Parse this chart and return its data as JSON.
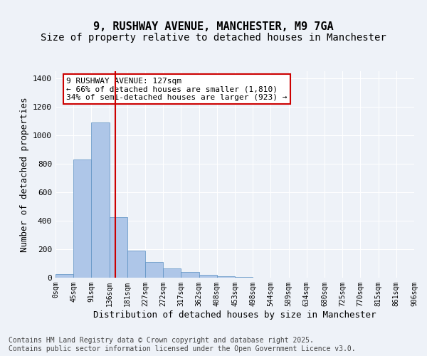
{
  "title1": "9, RUSHWAY AVENUE, MANCHESTER, M9 7GA",
  "title2": "Size of property relative to detached houses in Manchester",
  "xlabel": "Distribution of detached houses by size in Manchester",
  "ylabel": "Number of detached properties",
  "bin_labels": [
    "0sqm",
    "45sqm",
    "91sqm",
    "136sqm",
    "181sqm",
    "227sqm",
    "272sqm",
    "317sqm",
    "362sqm",
    "408sqm",
    "453sqm",
    "498sqm",
    "544sqm",
    "589sqm",
    "634sqm",
    "680sqm",
    "725sqm",
    "770sqm",
    "815sqm",
    "861sqm",
    "906sqm"
  ],
  "bar_values": [
    25,
    830,
    1090,
    425,
    190,
    110,
    65,
    40,
    20,
    10,
    5,
    0,
    0,
    0,
    0,
    0,
    0,
    0,
    0,
    0
  ],
  "bar_color": "#aec6e8",
  "bar_edge_color": "#5a8fc2",
  "vline_x": 2.82,
  "vline_color": "#cc0000",
  "annotation_text": "9 RUSHWAY AVENUE: 127sqm\n← 66% of detached houses are smaller (1,810)\n34% of semi-detached houses are larger (923) →",
  "annotation_fontsize": 8,
  "box_edge_color": "#cc0000",
  "ylim": [
    0,
    1450
  ],
  "yticks": [
    0,
    200,
    400,
    600,
    800,
    1000,
    1200,
    1400
  ],
  "bg_color": "#eef2f8",
  "plot_bg_color": "#eef2f8",
  "footer_text": "Contains HM Land Registry data © Crown copyright and database right 2025.\nContains public sector information licensed under the Open Government Licence v3.0.",
  "title1_fontsize": 11,
  "title2_fontsize": 10,
  "xlabel_fontsize": 9,
  "ylabel_fontsize": 9,
  "footer_fontsize": 7
}
